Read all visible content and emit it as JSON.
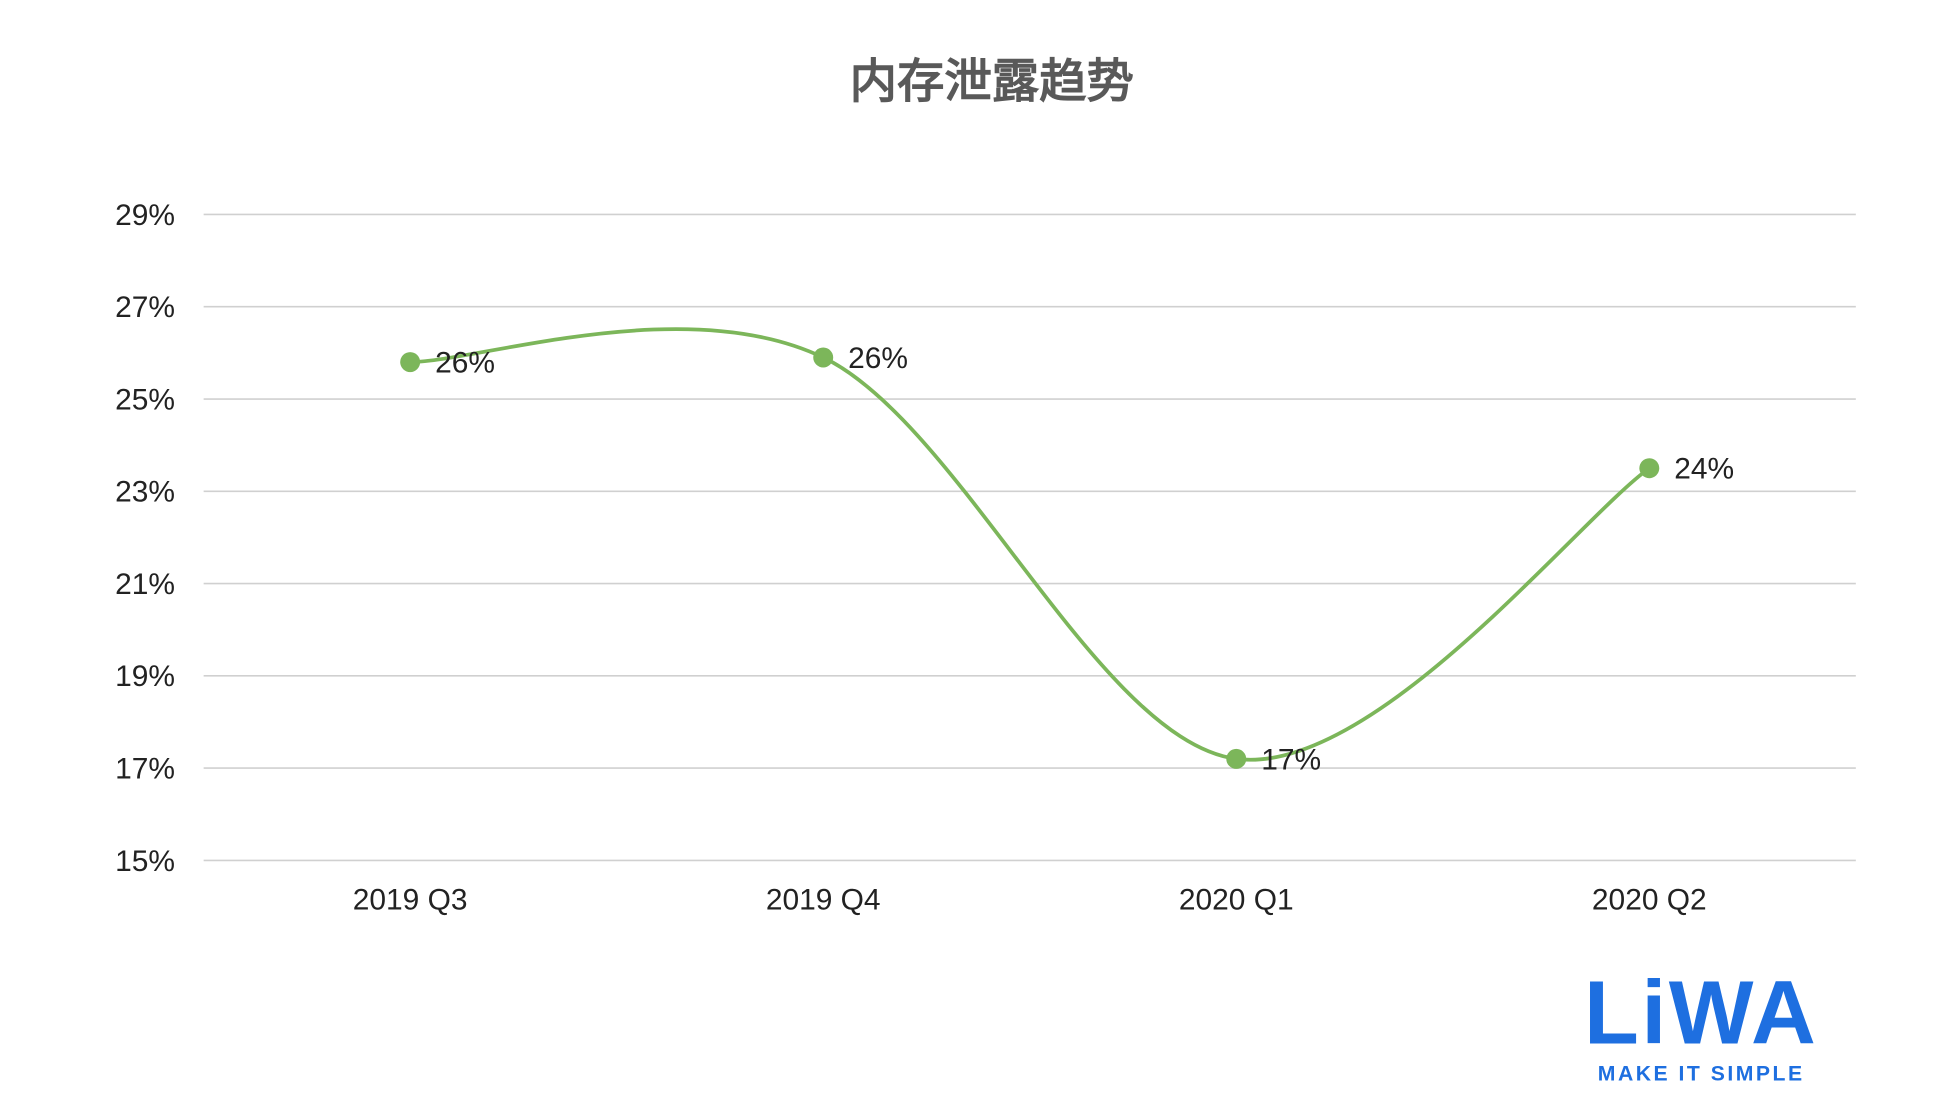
{
  "chart_data": {
    "type": "line",
    "title": "内存泄露趋势",
    "categories": [
      "2019 Q3",
      "2019 Q4",
      "2020 Q1",
      "2020 Q2"
    ],
    "series": [
      {
        "name": "内存泄露",
        "color": "#7cb65a",
        "values": [
          25.8,
          25.9,
          17.2,
          23.5
        ],
        "value_labels": [
          "26%",
          "26%",
          "17%",
          "24%"
        ]
      }
    ],
    "ylim": [
      15,
      29
    ],
    "yticks": [
      {
        "value": 15,
        "label": "15%"
      },
      {
        "value": 17,
        "label": "17%"
      },
      {
        "value": 19,
        "label": "19%"
      },
      {
        "value": 21,
        "label": "21%"
      },
      {
        "value": 23,
        "label": "23%"
      },
      {
        "value": 25,
        "label": "25%"
      },
      {
        "value": 27,
        "label": "27%"
      },
      {
        "value": 29,
        "label": "29%"
      }
    ],
    "grid": true,
    "smooth": true
  },
  "logo": {
    "name": "LiWA",
    "tagline": "MAKE IT SIMPLE"
  }
}
